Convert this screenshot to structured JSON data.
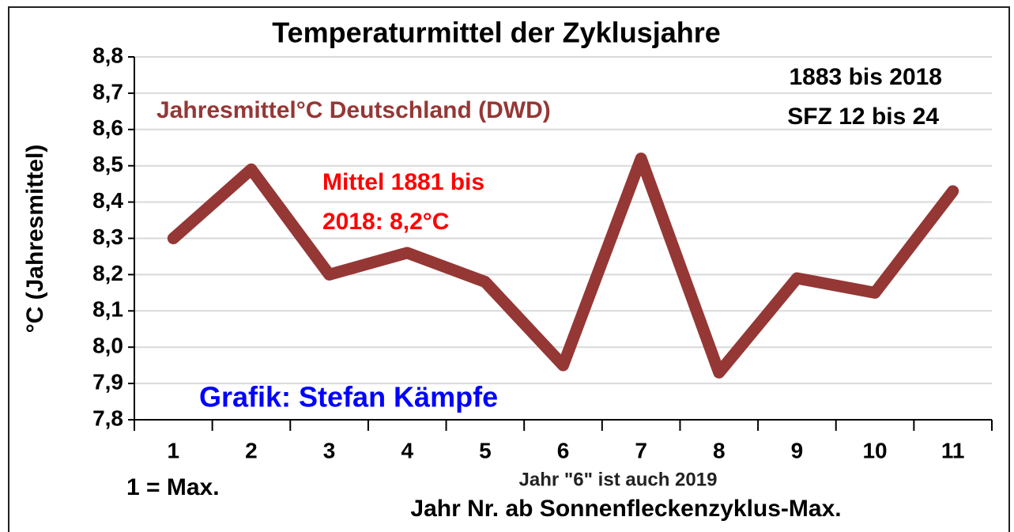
{
  "chart_data": {
    "type": "line",
    "title": "Temperaturmittel der Zyklusjahre",
    "x_label": "Jahr Nr. ab Sonnenfleckenzyklus-Max.",
    "y_label": "°C (Jahresmittel)",
    "categories": [
      "1",
      "2",
      "3",
      "4",
      "5",
      "6",
      "7",
      "8",
      "9",
      "10",
      "11"
    ],
    "series": [
      {
        "name": "Jahresmittel°C Deutschland (DWD)",
        "color": "#953735",
        "values": [
          8.3,
          8.49,
          8.2,
          8.26,
          8.18,
          7.95,
          8.52,
          7.93,
          8.19,
          8.15,
          8.43
        ]
      }
    ],
    "ylim": [
      7.8,
      8.8
    ],
    "yticks": [
      {
        "value": 7.8,
        "label": "7,8"
      },
      {
        "value": 7.9,
        "label": "7,9"
      },
      {
        "value": 8.0,
        "label": "8,0"
      },
      {
        "value": 8.1,
        "label": "8,1"
      },
      {
        "value": 8.2,
        "label": "8,2"
      },
      {
        "value": 8.3,
        "label": "8,3"
      },
      {
        "value": 8.4,
        "label": "8,4"
      },
      {
        "value": 8.5,
        "label": "8,5"
      },
      {
        "value": 8.6,
        "label": "8,6"
      },
      {
        "value": 8.7,
        "label": "8,7"
      },
      {
        "value": 8.8,
        "label": "8,8"
      }
    ],
    "grid": true,
    "annotations": [
      "1883 bis 2018",
      "SFZ 12 bis 24",
      "Mittel 1881 bis",
      "2018: 8,2°C",
      "Grafik: Stefan Kämpfe",
      "1 = Max.",
      "Jahr \"6\"  ist auch 2019"
    ]
  }
}
